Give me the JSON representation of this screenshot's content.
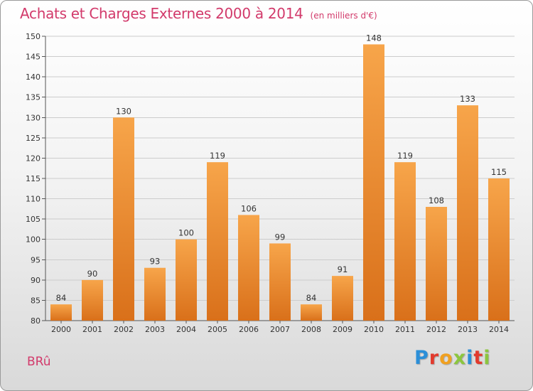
{
  "header": {
    "title": "Achats et Charges Externes 2000 à 2014",
    "unit": "(en milliers d'€)"
  },
  "commune": "BRû",
  "logo": {
    "text": "Proxiti",
    "letters": [
      {
        "char": "P",
        "color": "#2b8fd8"
      },
      {
        "char": "r",
        "color": "#e23b2e"
      },
      {
        "char": "o",
        "color": "#f0a020"
      },
      {
        "char": "x",
        "color": "#8cc63f"
      },
      {
        "char": "i",
        "color": "#2b8fd8"
      },
      {
        "char": "t",
        "color": "#e23b2e"
      },
      {
        "char": "i",
        "color": "#8cc63f"
      }
    ]
  },
  "colors": {
    "bar_top": "#f7a54a",
    "bar_bottom": "#d9701a",
    "accent": "#d23a6b",
    "grid": "#cccccc"
  },
  "chart_data": {
    "type": "bar",
    "title": "Achats et Charges Externes 2000 à 2014",
    "subtitle": "(en milliers d'€)",
    "categories": [
      "2000",
      "2001",
      "2002",
      "2003",
      "2004",
      "2005",
      "2006",
      "2007",
      "2008",
      "2009",
      "2010",
      "2011",
      "2012",
      "2013",
      "2014"
    ],
    "values": [
      84,
      90,
      130,
      93,
      100,
      119,
      106,
      99,
      84,
      91,
      148,
      119,
      108,
      133,
      115
    ],
    "ylim": [
      80,
      150
    ],
    "yticks": [
      80,
      85,
      90,
      95,
      100,
      105,
      110,
      115,
      120,
      125,
      130,
      135,
      140,
      145,
      150
    ],
    "grid": true,
    "data_labels": true
  }
}
